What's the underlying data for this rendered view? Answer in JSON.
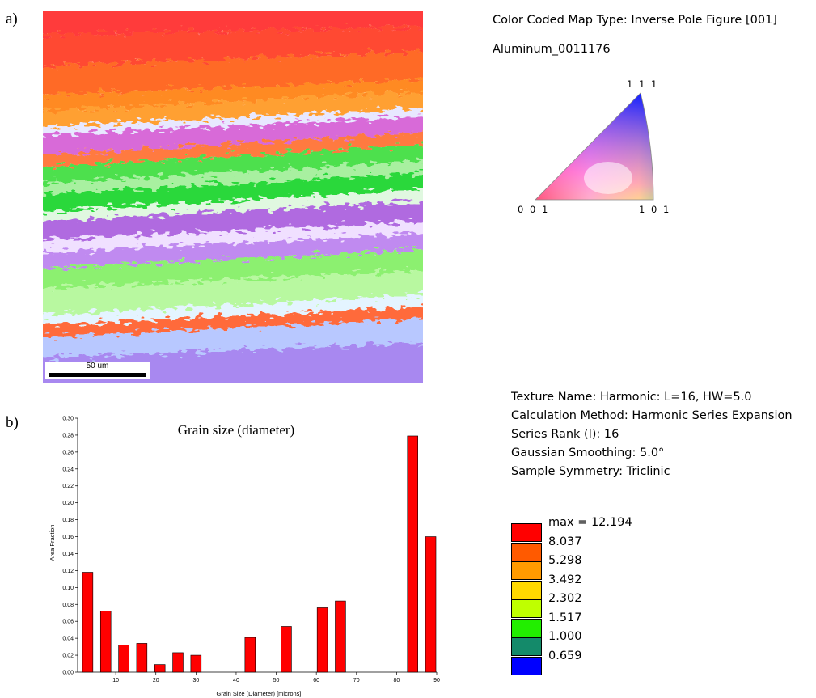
{
  "panel_a_label": "a)",
  "panel_b_label": "b)",
  "ebsd_map": {
    "scale_bar_label": "50 um"
  },
  "ipf": {
    "map_type": "Color Coded Map Type: Inverse Pole Figure [001]",
    "dataset": "Aluminum_0011176",
    "corner_111": "1 1 1",
    "corner_001": "0 0 1",
    "corner_101": "1 0 1"
  },
  "texture": {
    "name": "Texture Name: Harmonic: L=16, HW=5.0",
    "method": "Calculation Method: Harmonic Series Expansion",
    "rank": "Series Rank (l): 16",
    "smoothing": "Gaussian Smoothing: 5.0°",
    "symmetry": "Sample Symmetry: Triclinic"
  },
  "legend": {
    "items": [
      {
        "label": "max = 12.194",
        "color": "#ff0000"
      },
      {
        "label": "8.037",
        "color": "#ff5a00"
      },
      {
        "label": "5.298",
        "color": "#ff9a00"
      },
      {
        "label": "3.492",
        "color": "#ffd800"
      },
      {
        "label": "2.302",
        "color": "#bfff00"
      },
      {
        "label": "1.517",
        "color": "#22ee00"
      },
      {
        "label": "1.000",
        "color": "#148a6a"
      },
      {
        "label": "0.659",
        "color": "#0000ff"
      }
    ]
  },
  "chart_data": {
    "type": "bar",
    "title": "Grain size (diameter)",
    "xlabel": "Grain Size (Diameter) [microns]",
    "ylabel": "Area Fraction",
    "xlim": [
      0.5,
      90
    ],
    "ylim": [
      0,
      0.3
    ],
    "x_ticks": [
      "10",
      "20",
      "30",
      "40",
      "50",
      "60",
      "70",
      "80",
      "90"
    ],
    "y_ticks": [
      "0.00",
      "0.02",
      "0.04",
      "0.06",
      "0.08",
      "0.10",
      "0.12",
      "0.14",
      "0.16",
      "0.18",
      "0.20",
      "0.22",
      "0.24",
      "0.26",
      "0.28",
      "0.30"
    ],
    "bar_color": "#ff0000",
    "x": [
      3,
      7.5,
      12,
      16.5,
      21,
      25.5,
      30,
      43.5,
      52.5,
      61.5,
      66,
      84,
      88.5
    ],
    "values": [
      0.118,
      0.072,
      0.032,
      0.034,
      0.009,
      0.023,
      0.02,
      0.041,
      0.054,
      0.076,
      0.084,
      0.279,
      0.16
    ]
  }
}
